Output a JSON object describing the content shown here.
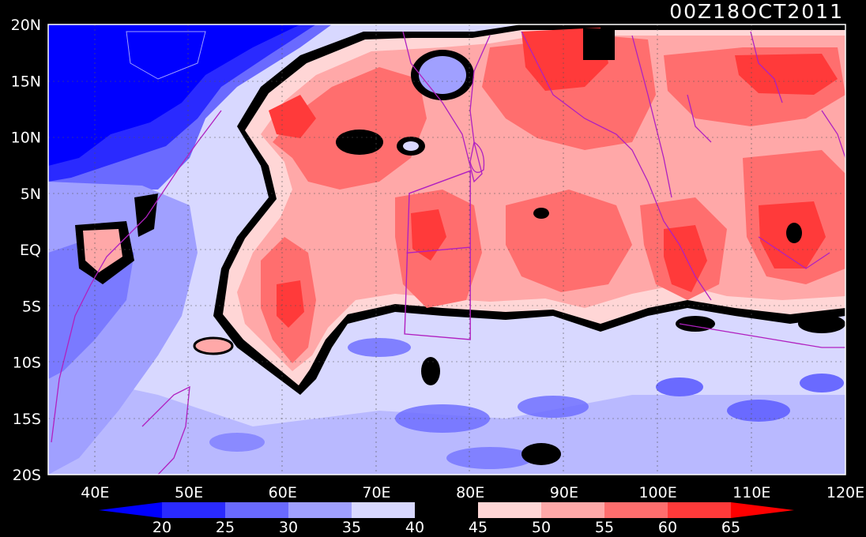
{
  "title": "00Z18OCT2011",
  "map": {
    "lat_labels": [
      "20N",
      "15N",
      "10N",
      "5N",
      "EQ",
      "5S",
      "10S",
      "15S",
      "20S"
    ],
    "lon_labels": [
      "40E",
      "50E",
      "60E",
      "70E",
      "80E",
      "90E",
      "100E",
      "110E",
      "120E"
    ],
    "lat_range": [
      -20,
      20
    ],
    "lon_range": [
      35,
      120
    ],
    "boxes": [
      {
        "name": "west-box",
        "corners": [
          [
            73.5,
            5
          ],
          [
            80,
            7
          ],
          [
            80,
            -8
          ],
          [
            73,
            -7.5
          ]
        ]
      },
      {
        "name": "equator-divider",
        "corners": [
          [
            73.2,
            -0.3
          ],
          [
            80,
            0.2
          ]
        ]
      }
    ]
  },
  "legend": {
    "levels": [
      "20",
      "25",
      "30",
      "35",
      "40",
      "45",
      "50",
      "55",
      "60",
      "65"
    ],
    "colors": [
      "#0000ff",
      "#2a2aff",
      "#6a6aff",
      "#a0a0ff",
      "#d8d8ff",
      "#000000",
      "#ffd6d6",
      "#ffa8a8",
      "#ff6e6e",
      "#ff3a3a",
      "#ff0000"
    ]
  },
  "colors": {
    "background": "#000000",
    "boundary": "#b020c0",
    "frame": "#ffffff"
  }
}
